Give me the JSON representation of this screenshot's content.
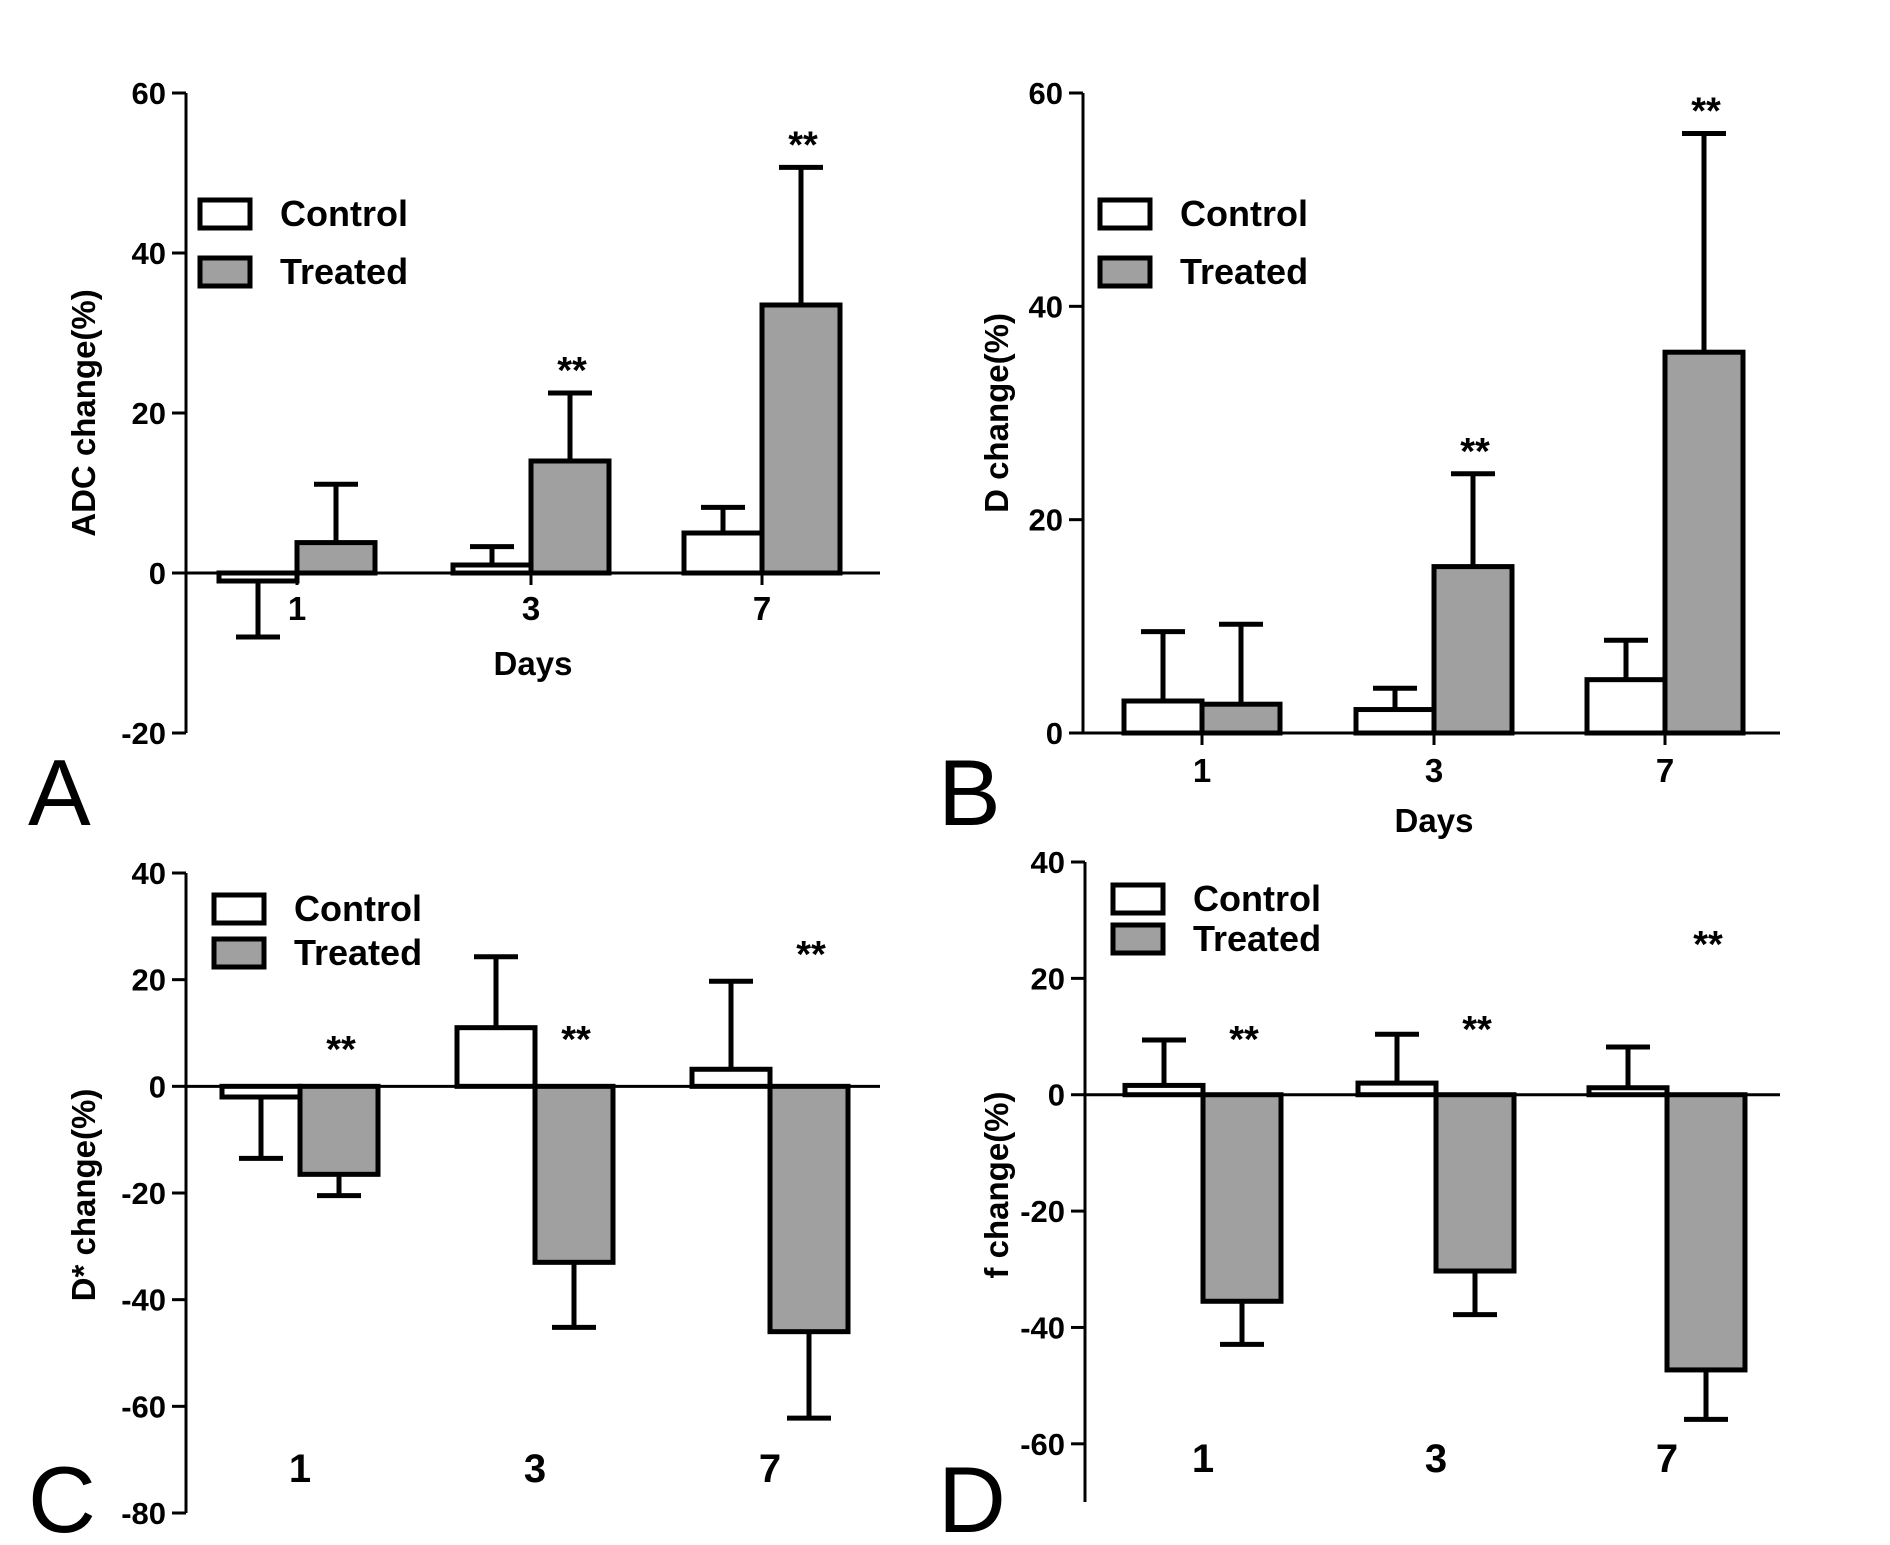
{
  "colors": {
    "control": "#ffffff",
    "treated": "#a0a0a0",
    "stroke": "#000000"
  },
  "legend": {
    "control": "Control",
    "treated": "Treated"
  },
  "chart_data": [
    {
      "panel": "A",
      "type": "bar",
      "title": "",
      "xlabel": "Days",
      "ylabel": "ADC change(%)",
      "categories": [
        "1",
        "3",
        "7"
      ],
      "ylim": [
        -20,
        60
      ],
      "yticks": [
        "-20",
        "0",
        "20",
        "40",
        "60"
      ],
      "series": [
        {
          "name": "Control",
          "values": [
            -1,
            1,
            5
          ],
          "errors": [
            7,
            2.3,
            3.2
          ]
        },
        {
          "name": "Treated",
          "values": [
            3.8,
            14,
            33.5
          ],
          "errors": [
            7.3,
            8.5,
            17.2
          ]
        }
      ],
      "significance": [
        "",
        "**",
        "**"
      ],
      "legend_position": "top-left",
      "category_labels_below_axis": false
    },
    {
      "panel": "B",
      "type": "bar",
      "title": "",
      "xlabel": "Days",
      "ylabel": "D change(%)",
      "categories": [
        "1",
        "3",
        "7"
      ],
      "ylim": [
        0,
        60
      ],
      "yticks": [
        "0",
        "20",
        "40",
        "60"
      ],
      "series": [
        {
          "name": "Control",
          "values": [
            3,
            2.2,
            5
          ],
          "errors": [
            6.5,
            2,
            3.7
          ]
        },
        {
          "name": "Treated",
          "values": [
            2.7,
            15.6,
            35.7
          ],
          "errors": [
            7.5,
            8.7,
            20.5
          ]
        }
      ],
      "significance": [
        "",
        "**",
        "**"
      ],
      "legend_position": "top-left",
      "category_labels_below_axis": false
    },
    {
      "panel": "C",
      "type": "bar",
      "title": "",
      "xlabel": "",
      "ylabel": "D* change(%)",
      "categories": [
        "1",
        "3",
        "7"
      ],
      "ylim": [
        -80,
        40
      ],
      "yticks": [
        "-80",
        "-60",
        "-40",
        "-20",
        "0",
        "20",
        "40"
      ],
      "series": [
        {
          "name": "Control",
          "values": [
            -2,
            11,
            3.2
          ],
          "errors": [
            11.5,
            13.3,
            16.5
          ]
        },
        {
          "name": "Treated",
          "values": [
            -16.5,
            -33,
            -46
          ],
          "errors": [
            4,
            12.2,
            16.2
          ]
        }
      ],
      "significance": [
        "**",
        "**",
        "**"
      ],
      "legend_position": "top-left",
      "category_labels_below_axis": true
    },
    {
      "panel": "D",
      "type": "bar",
      "title": "",
      "xlabel": "",
      "ylabel": "f change(%)",
      "categories": [
        "1",
        "3",
        "7"
      ],
      "ylim": [
        -70,
        40
      ],
      "yticks": [
        "-60",
        "-40",
        "-20",
        "0",
        "20",
        "40"
      ],
      "series": [
        {
          "name": "Control",
          "values": [
            1.6,
            2,
            1.2
          ],
          "errors": [
            7.8,
            8.4,
            7
          ]
        },
        {
          "name": "Treated",
          "values": [
            -35.5,
            -30.3,
            -47.3
          ],
          "errors": [
            7.4,
            7.5,
            8.5
          ]
        }
      ],
      "significance": [
        "**",
        "**",
        "**"
      ],
      "legend_position": "top-left",
      "category_labels_below_axis": true
    }
  ]
}
